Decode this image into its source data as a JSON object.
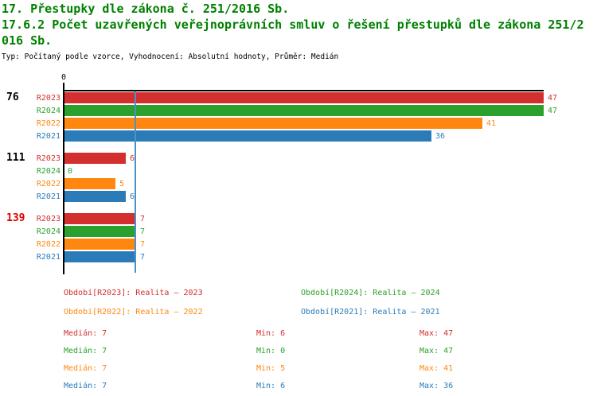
{
  "header": {
    "title_line1": "17. Přestupky dle zákona č. 251/2016 Sb.",
    "title_line2": "17.6.2 Počet uzavřených veřejnoprávních smluv o řešení přestupků dle zákona 251/2016 Sb.",
    "meta": "Typ: Počítaný podle vzorce, Vyhodnocení: Absolutní hodnoty, Průměr: Medián"
  },
  "colors": {
    "title_green": "#008000",
    "axis_black": "#000000",
    "median_line_blue": "#4a93c8",
    "highlight_red": "#e00000",
    "series": {
      "R2023": "#d32f2f",
      "R2024": "#2ca02c",
      "R2022": "#ff870f",
      "R2021": "#2b7bb9"
    }
  },
  "chart_data": {
    "type": "bar",
    "orientation": "horizontal",
    "value_axis": {
      "origin_label": "0",
      "min": 0,
      "max": 47,
      "median_line_value": 7
    },
    "series": [
      "R2023",
      "R2024",
      "R2022",
      "R2021"
    ],
    "groups": [
      {
        "label": "76",
        "highlighted": false,
        "values": [
          47,
          47,
          41,
          36
        ]
      },
      {
        "label": "111",
        "highlighted": false,
        "values": [
          6,
          0,
          5,
          6
        ]
      },
      {
        "label": "139",
        "highlighted": true,
        "values": [
          7,
          7,
          7,
          7
        ]
      }
    ]
  },
  "legend": {
    "rows": [
      [
        {
          "series": "R2023",
          "label": "Období[R2023]: Realita – 2023"
        },
        {
          "series": "R2024",
          "label": "Období[R2024]: Realita – 2024"
        }
      ],
      [
        {
          "series": "R2022",
          "label": "Období[R2022]: Realita – 2022"
        },
        {
          "series": "R2021",
          "label": "Období[R2021]: Realita – 2021"
        }
      ]
    ]
  },
  "stats": {
    "rows": [
      {
        "series": "R2023",
        "median": "Medián: 7",
        "min": "Min: 6",
        "max": "Max: 47"
      },
      {
        "series": "R2024",
        "median": "Medián: 7",
        "min": "Min: 0",
        "max": "Max: 47"
      },
      {
        "series": "R2022",
        "median": "Medián: 7",
        "min": "Min: 5",
        "max": "Max: 41"
      },
      {
        "series": "R2021",
        "median": "Medián: 7",
        "min": "Min: 6",
        "max": "Max: 36"
      }
    ]
  }
}
